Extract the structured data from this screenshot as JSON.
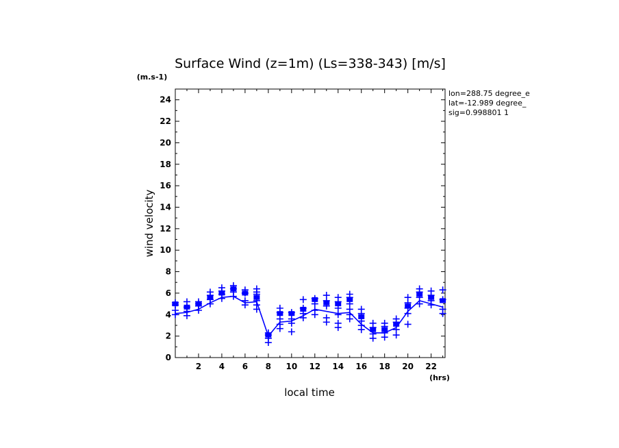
{
  "chart_data": {
    "type": "line",
    "title": "Surface Wind (z=1m) (Ls=338-343) [m/s]",
    "y_unit_label": "(m.s-1)",
    "x_unit_label": "(hrs)",
    "xlabel": "local time",
    "ylabel": "wind velocity",
    "xlim": [
      0,
      23.2
    ],
    "ylim": [
      0,
      25
    ],
    "x_ticks": [
      2,
      4,
      6,
      8,
      10,
      12,
      14,
      16,
      18,
      20,
      22
    ],
    "y_ticks": [
      0,
      2,
      4,
      6,
      8,
      10,
      12,
      14,
      16,
      18,
      20,
      22,
      24
    ],
    "info_lines": [
      "lon=288.75 degree_e",
      "lat=-12.989 degree_",
      "sig=0.998801 1"
    ],
    "colors": {
      "series": "#0000ff",
      "axes": "#000000"
    },
    "series": [
      {
        "type": "line",
        "x": [
          0,
          1,
          2,
          3,
          4,
          5,
          6,
          7,
          8,
          9,
          10,
          11,
          12,
          13,
          14,
          15,
          16,
          17,
          18,
          19,
          20,
          21,
          22,
          23
        ],
        "values": [
          4.1,
          4.2,
          4.5,
          5.1,
          5.6,
          5.7,
          5.1,
          5.2,
          2.0,
          3.3,
          3.4,
          3.9,
          4.5,
          4.3,
          4.1,
          4.2,
          3.1,
          2.3,
          2.3,
          2.8,
          4.3,
          5.3,
          5.0,
          4.7
        ]
      },
      {
        "type": "mean-marker",
        "x": [
          0,
          1,
          2,
          3,
          4,
          5,
          6,
          7,
          8,
          9,
          10,
          11,
          12,
          13,
          14,
          15,
          16,
          17,
          18,
          19,
          20,
          21,
          22,
          23
        ],
        "values": [
          5.0,
          4.7,
          5.0,
          5.6,
          6.0,
          6.4,
          6.0,
          5.6,
          2.1,
          4.1,
          4.1,
          4.5,
          5.4,
          5.1,
          5.0,
          5.4,
          3.8,
          2.6,
          2.6,
          3.1,
          4.8,
          5.9,
          5.6,
          5.3
        ]
      },
      {
        "type": "scatter",
        "marker": "+",
        "points": [
          [
            0,
            4.0
          ],
          [
            0,
            4.4
          ],
          [
            0,
            4.9
          ],
          [
            0,
            5.1
          ],
          [
            1,
            3.9
          ],
          [
            1,
            4.3
          ],
          [
            1,
            4.7
          ],
          [
            1,
            5.2
          ],
          [
            2,
            4.4
          ],
          [
            2,
            4.8
          ],
          [
            2,
            5.0
          ],
          [
            2,
            5.2
          ],
          [
            3,
            5.0
          ],
          [
            3,
            5.4
          ],
          [
            3,
            5.8
          ],
          [
            3,
            6.1
          ],
          [
            4,
            5.5
          ],
          [
            4,
            5.9
          ],
          [
            4,
            6.2
          ],
          [
            4,
            6.5
          ],
          [
            5,
            5.7
          ],
          [
            5,
            6.1
          ],
          [
            5,
            6.4
          ],
          [
            5,
            6.7
          ],
          [
            6,
            4.9
          ],
          [
            6,
            5.3
          ],
          [
            6,
            6.0
          ],
          [
            6,
            6.3
          ],
          [
            7,
            4.5
          ],
          [
            7,
            4.9
          ],
          [
            7,
            5.3
          ],
          [
            7,
            5.9
          ],
          [
            7,
            6.1
          ],
          [
            7,
            6.4
          ],
          [
            8,
            1.4
          ],
          [
            8,
            1.8
          ],
          [
            8,
            2.1
          ],
          [
            8,
            2.3
          ],
          [
            9,
            2.7
          ],
          [
            9,
            3.1
          ],
          [
            9,
            3.6
          ],
          [
            9,
            4.2
          ],
          [
            9,
            4.6
          ],
          [
            10,
            2.4
          ],
          [
            10,
            3.2
          ],
          [
            10,
            3.6
          ],
          [
            10,
            4.2
          ],
          [
            11,
            3.7
          ],
          [
            11,
            4.1
          ],
          [
            11,
            4.6
          ],
          [
            11,
            5.4
          ],
          [
            12,
            4.0
          ],
          [
            12,
            4.4
          ],
          [
            12,
            5.0
          ],
          [
            12,
            5.5
          ],
          [
            13,
            3.3
          ],
          [
            13,
            3.7
          ],
          [
            13,
            4.8
          ],
          [
            13,
            5.3
          ],
          [
            13,
            5.8
          ],
          [
            14,
            2.8
          ],
          [
            14,
            3.2
          ],
          [
            14,
            4.0
          ],
          [
            14,
            4.6
          ],
          [
            14,
            5.2
          ],
          [
            14,
            5.6
          ],
          [
            15,
            3.6
          ],
          [
            15,
            4.0
          ],
          [
            15,
            4.5
          ],
          [
            15,
            5.0
          ],
          [
            15,
            5.6
          ],
          [
            15,
            5.9
          ],
          [
            16,
            2.6
          ],
          [
            16,
            3.0
          ],
          [
            16,
            3.4
          ],
          [
            16,
            4.1
          ],
          [
            16,
            4.5
          ],
          [
            17,
            1.8
          ],
          [
            17,
            2.2
          ],
          [
            17,
            2.8
          ],
          [
            17,
            3.2
          ],
          [
            18,
            1.9
          ],
          [
            18,
            2.3
          ],
          [
            18,
            2.9
          ],
          [
            18,
            3.2
          ],
          [
            19,
            2.1
          ],
          [
            19,
            2.6
          ],
          [
            19,
            3.3
          ],
          [
            19,
            3.6
          ],
          [
            20,
            3.1
          ],
          [
            20,
            4.1
          ],
          [
            20,
            4.6
          ],
          [
            20,
            5.1
          ],
          [
            20,
            5.6
          ],
          [
            21,
            5.0
          ],
          [
            21,
            5.6
          ],
          [
            21,
            6.1
          ],
          [
            21,
            6.4
          ],
          [
            22,
            4.9
          ],
          [
            22,
            5.3
          ],
          [
            22,
            5.8
          ],
          [
            22,
            6.2
          ],
          [
            23,
            4.1
          ],
          [
            23,
            4.5
          ],
          [
            23,
            5.4
          ],
          [
            23,
            6.3
          ]
        ]
      }
    ]
  }
}
